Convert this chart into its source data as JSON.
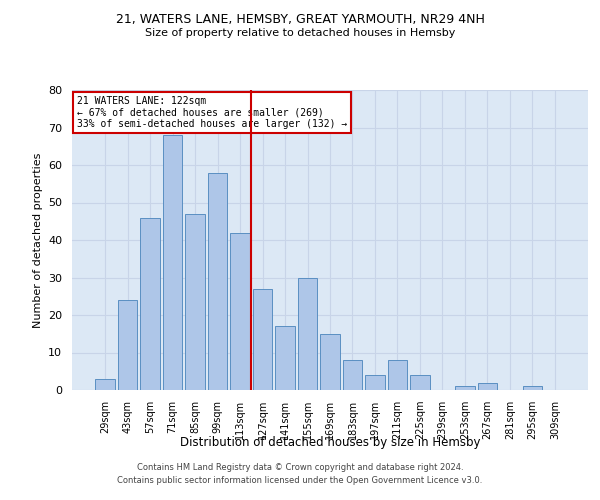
{
  "title_line1": "21, WATERS LANE, HEMSBY, GREAT YARMOUTH, NR29 4NH",
  "title_line2": "Size of property relative to detached houses in Hemsby",
  "xlabel": "Distribution of detached houses by size in Hemsby",
  "ylabel": "Number of detached properties",
  "categories": [
    "29sqm",
    "43sqm",
    "57sqm",
    "71sqm",
    "85sqm",
    "99sqm",
    "113sqm",
    "127sqm",
    "141sqm",
    "155sqm",
    "169sqm",
    "183sqm",
    "197sqm",
    "211sqm",
    "225sqm",
    "239sqm",
    "253sqm",
    "267sqm",
    "281sqm",
    "295sqm",
    "309sqm"
  ],
  "values": [
    3,
    24,
    46,
    68,
    47,
    58,
    42,
    27,
    17,
    30,
    15,
    8,
    4,
    8,
    4,
    0,
    1,
    2,
    0,
    1,
    0
  ],
  "bar_color": "#aec6e8",
  "bar_edge_color": "#5a8fc2",
  "annotation_line1": "21 WATERS LANE: 122sqm",
  "annotation_line2": "← 67% of detached houses are smaller (269)",
  "annotation_line3": "33% of semi-detached houses are larger (132) →",
  "annotation_box_color": "#ffffff",
  "annotation_box_edge_color": "#cc0000",
  "vline_color": "#cc0000",
  "ylim": [
    0,
    80
  ],
  "yticks": [
    0,
    10,
    20,
    30,
    40,
    50,
    60,
    70,
    80
  ],
  "grid_color": "#c8d4e8",
  "background_color": "#dce8f5",
  "footer_line1": "Contains HM Land Registry data © Crown copyright and database right 2024.",
  "footer_line2": "Contains public sector information licensed under the Open Government Licence v3.0."
}
